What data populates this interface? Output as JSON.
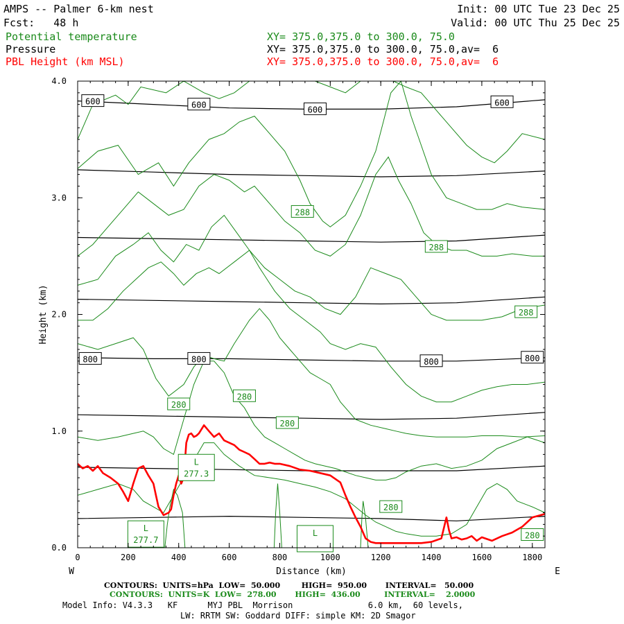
{
  "header": {
    "title": "AMPS -- Palmer 6-km nest",
    "fcst": "Fcst:   48 h",
    "init": "Init: 00 UTC Tue 23 Dec 25",
    "valid": "Valid: 00 UTC Thu 25 Dec 25"
  },
  "fields": [
    {
      "name": "Potential temperature",
      "xy": "XY= 375.0,375.0 to 300.0, 75.0",
      "color": "#1a8a1a"
    },
    {
      "name": "Pressure",
      "xy": "XY= 375.0,375.0 to 300.0, 75.0,av=  6",
      "color": "#000000"
    },
    {
      "name": "PBL Height (km MSL)",
      "xy": "XY= 375.0,375.0 to 300.0, 75.0,av=  6",
      "color": "#ff0000"
    }
  ],
  "chart_data": {
    "type": "line",
    "xlabel": "Distance (km)",
    "ylabel": "Height (km)",
    "xlim": [
      0,
      1850
    ],
    "ylim": [
      0,
      4.0
    ],
    "x_ticks": [
      "0",
      "200",
      "400",
      "600",
      "800",
      "1000",
      "1200",
      "1400",
      "1600",
      "1800"
    ],
    "y_ticks": [
      "0.0",
      "1.0",
      "2.0",
      "3.0",
      "4.0"
    ],
    "west_label": "W",
    "east_label": "E",
    "pressure_contours": [
      {
        "level": 600,
        "label": "600",
        "x": [
          0,
          300,
          600,
          900,
          1200,
          1500,
          1850
        ],
        "y": [
          3.83,
          3.8,
          3.77,
          3.76,
          3.76,
          3.78,
          3.84
        ]
      },
      {
        "level": 650,
        "label": "",
        "x": [
          0,
          300,
          600,
          900,
          1200,
          1500,
          1850
        ],
        "y": [
          3.24,
          3.22,
          3.2,
          3.19,
          3.18,
          3.19,
          3.23
        ]
      },
      {
        "level": 700,
        "label": "",
        "x": [
          0,
          300,
          600,
          900,
          1200,
          1500,
          1850
        ],
        "y": [
          2.66,
          2.65,
          2.64,
          2.63,
          2.62,
          2.63,
          2.68
        ]
      },
      {
        "level": 750,
        "label": "",
        "x": [
          0,
          300,
          600,
          900,
          1200,
          1500,
          1850
        ],
        "y": [
          2.13,
          2.12,
          2.11,
          2.1,
          2.09,
          2.1,
          2.15
        ]
      },
      {
        "level": 800,
        "label": "800",
        "x": [
          0,
          300,
          600,
          900,
          1200,
          1500,
          1850
        ],
        "y": [
          1.63,
          1.62,
          1.62,
          1.61,
          1.6,
          1.6,
          1.63
        ]
      },
      {
        "level": 850,
        "label": "",
        "x": [
          0,
          300,
          600,
          900,
          1200,
          1500,
          1850
        ],
        "y": [
          1.14,
          1.13,
          1.12,
          1.11,
          1.1,
          1.11,
          1.16
        ]
      },
      {
        "level": 900,
        "label": "",
        "x": [
          0,
          300,
          600,
          900,
          1200,
          1500,
          1850
        ],
        "y": [
          0.69,
          0.68,
          0.67,
          0.66,
          0.66,
          0.66,
          0.7
        ]
      },
      {
        "level": 950,
        "label": "",
        "x": [
          0,
          300,
          600,
          900,
          1200,
          1500,
          1850
        ],
        "y": [
          0.25,
          0.26,
          0.27,
          0.26,
          0.25,
          0.23,
          0.27
        ]
      }
    ],
    "pressure_labels": [
      {
        "text": "600",
        "x": 60,
        "y": 3.83
      },
      {
        "text": "600",
        "x": 480,
        "y": 3.8
      },
      {
        "text": "600",
        "x": 940,
        "y": 3.76
      },
      {
        "text": "600",
        "x": 1680,
        "y": 3.82
      },
      {
        "text": "800",
        "x": 50,
        "y": 1.62
      },
      {
        "text": "800",
        "x": 480,
        "y": 1.62
      },
      {
        "text": "800",
        "x": 1400,
        "y": 1.6
      },
      {
        "text": "800",
        "x": 1800,
        "y": 1.63
      }
    ],
    "theta_contours": [
      {
        "label": "",
        "x": [
          0,
          60,
          150,
          200,
          250,
          350,
          420,
          500,
          560,
          620,
          680,
          740,
          800,
          870,
          940,
          1000,
          1060,
          1120,
          1180,
          1250,
          1300,
          1360,
          1420,
          1480,
          1540,
          1600,
          1650,
          1700,
          1760,
          1850
        ],
        "y": [
          3.5,
          3.8,
          3.88,
          3.8,
          3.95,
          3.9,
          4.0,
          3.9,
          3.85,
          3.9,
          4.0,
          4.0,
          4.0,
          4.0,
          4.0,
          3.95,
          3.9,
          4.0,
          4.0,
          4.0,
          3.95,
          3.9,
          3.75,
          3.6,
          3.45,
          3.35,
          3.3,
          3.4,
          3.55,
          3.5
        ]
      },
      {
        "label": "288",
        "x": [
          0,
          80,
          160,
          240,
          320,
          380,
          440,
          520,
          580,
          640,
          700,
          760,
          820,
          880,
          920,
          970,
          1000,
          1060,
          1120,
          1180,
          1240,
          1280,
          1320,
          1360,
          1400,
          1460,
          1520,
          1580,
          1640,
          1700,
          1760,
          1850
        ],
        "y": [
          3.25,
          3.4,
          3.45,
          3.2,
          3.3,
          3.1,
          3.3,
          3.5,
          3.55,
          3.65,
          3.7,
          3.55,
          3.4,
          3.15,
          2.95,
          2.8,
          2.75,
          2.85,
          3.1,
          3.4,
          3.9,
          4.0,
          3.7,
          3.45,
          3.2,
          3.0,
          2.95,
          2.9,
          2.9,
          2.95,
          2.92,
          2.9
        ]
      },
      {
        "label": "288",
        "x": [
          0,
          60,
          120,
          180,
          240,
          300,
          360,
          420,
          480,
          540,
          600,
          660,
          700,
          760,
          820,
          880,
          940,
          1000,
          1060,
          1120,
          1180,
          1230,
          1270,
          1320,
          1370,
          1420,
          1480,
          1540,
          1600,
          1660,
          1720,
          1800,
          1850
        ],
        "y": [
          2.5,
          2.6,
          2.75,
          2.9,
          3.05,
          2.95,
          2.85,
          2.9,
          3.1,
          3.2,
          3.15,
          3.05,
          3.1,
          2.95,
          2.8,
          2.7,
          2.55,
          2.5,
          2.6,
          2.85,
          3.2,
          3.35,
          3.15,
          2.95,
          2.7,
          2.6,
          2.55,
          2.55,
          2.5,
          2.5,
          2.52,
          2.5,
          2.5
        ]
      },
      {
        "label": "288",
        "x": [
          0,
          80,
          150,
          220,
          280,
          330,
          380,
          430,
          480,
          530,
          580,
          630,
          680,
          740,
          800,
          860,
          920,
          980,
          1040,
          1100,
          1160,
          1220,
          1280,
          1340,
          1400,
          1460,
          1520,
          1600,
          1680,
          1760,
          1850
        ],
        "y": [
          2.25,
          2.3,
          2.5,
          2.6,
          2.7,
          2.55,
          2.45,
          2.6,
          2.55,
          2.75,
          2.85,
          2.7,
          2.55,
          2.4,
          2.3,
          2.2,
          2.15,
          2.05,
          2.0,
          2.15,
          2.4,
          2.35,
          2.3,
          2.15,
          2.0,
          1.95,
          1.95,
          1.95,
          1.98,
          2.05,
          2.08
        ]
      },
      {
        "label": "",
        "x": [
          0,
          60,
          120,
          180,
          230,
          280,
          330,
          380,
          420,
          470,
          520,
          560,
          620,
          680,
          720,
          780,
          840,
          900,
          960,
          1000,
          1060,
          1120,
          1180,
          1240,
          1300,
          1360,
          1420,
          1480,
          1540,
          1600,
          1660,
          1720,
          1780,
          1850
        ],
        "y": [
          1.95,
          1.95,
          2.05,
          2.2,
          2.3,
          2.4,
          2.45,
          2.35,
          2.25,
          2.35,
          2.4,
          2.35,
          2.45,
          2.55,
          2.4,
          2.2,
          2.05,
          1.95,
          1.85,
          1.75,
          1.7,
          1.75,
          1.72,
          1.55,
          1.4,
          1.3,
          1.25,
          1.25,
          1.3,
          1.35,
          1.38,
          1.4,
          1.4,
          1.42
        ]
      },
      {
        "label": "280",
        "x": [
          0,
          80,
          150,
          220,
          260,
          310,
          360,
          420,
          460,
          500,
          540,
          580,
          620,
          680,
          720,
          760,
          800,
          840,
          880,
          920,
          960,
          1000,
          1040,
          1100,
          1160,
          1220,
          1260,
          1300,
          1360,
          1420,
          1480,
          1540,
          1600,
          1680,
          1760,
          1850
        ],
        "y": [
          1.75,
          1.7,
          1.75,
          1.8,
          1.7,
          1.45,
          1.3,
          1.4,
          1.55,
          1.65,
          1.62,
          1.6,
          1.75,
          1.95,
          2.05,
          1.95,
          1.8,
          1.7,
          1.6,
          1.5,
          1.45,
          1.4,
          1.25,
          1.1,
          1.05,
          1.02,
          1.0,
          0.98,
          0.96,
          0.95,
          0.95,
          0.95,
          0.96,
          0.96,
          0.95,
          0.96
        ]
      },
      {
        "label": "280",
        "x": [
          0,
          80,
          160,
          220,
          260,
          300,
          340,
          380,
          420,
          460,
          500,
          540,
          580,
          620,
          660,
          700,
          740,
          780,
          820,
          860,
          900,
          940,
          980,
          1020,
          1060,
          1100,
          1140,
          1180,
          1220,
          1260,
          1300,
          1360,
          1420,
          1480,
          1540,
          1600,
          1660,
          1720,
          1780,
          1850
        ],
        "y": [
          0.95,
          0.92,
          0.95,
          0.98,
          1.0,
          0.95,
          0.85,
          0.8,
          1.1,
          1.4,
          1.6,
          1.6,
          1.5,
          1.3,
          1.2,
          1.05,
          0.95,
          0.9,
          0.85,
          0.8,
          0.75,
          0.72,
          0.7,
          0.68,
          0.65,
          0.62,
          0.6,
          0.58,
          0.58,
          0.6,
          0.65,
          0.7,
          0.72,
          0.68,
          0.7,
          0.75,
          0.85,
          0.9,
          0.95,
          0.9
        ]
      },
      {
        "label": "280",
        "x": [
          0,
          80,
          160,
          220,
          260,
          300,
          340,
          380,
          420,
          460,
          500,
          540,
          580,
          640,
          700,
          760,
          820,
          880,
          940,
          1000,
          1060,
          1100,
          1140,
          1180,
          1220,
          1260,
          1300,
          1360,
          1420,
          1480,
          1540,
          1580,
          1620,
          1660,
          1700,
          1740,
          1800,
          1850
        ],
        "y": [
          0.45,
          0.5,
          0.55,
          0.5,
          0.4,
          0.35,
          0.3,
          0.45,
          0.6,
          0.75,
          0.9,
          0.9,
          0.8,
          0.7,
          0.62,
          0.6,
          0.58,
          0.55,
          0.52,
          0.48,
          0.42,
          0.35,
          0.28,
          0.22,
          0.18,
          0.14,
          0.12,
          0.1,
          0.1,
          0.12,
          0.2,
          0.35,
          0.5,
          0.55,
          0.5,
          0.4,
          0.35,
          0.3
        ]
      },
      {
        "label": "",
        "x": [
          345,
          355,
          365,
          380,
          395,
          415,
          425
        ],
        "y": [
          0.0,
          0.2,
          0.35,
          0.5,
          0.45,
          0.3,
          0.0
        ]
      },
      {
        "label": "",
        "x": [
          778,
          784,
          792,
          800,
          808
        ],
        "y": [
          0.0,
          0.3,
          0.55,
          0.3,
          0.0
        ]
      },
      {
        "label": "",
        "x": [
          1120,
          1125,
          1130,
          1140,
          1150
        ],
        "y": [
          0.0,
          0.25,
          0.4,
          0.25,
          0.0
        ]
      }
    ],
    "theta_labels": [
      {
        "text": "288",
        "x": 890,
        "y": 2.88
      },
      {
        "text": "288",
        "x": 1420,
        "y": 2.58
      },
      {
        "text": "288",
        "x": 1775,
        "y": 2.02
      },
      {
        "text": "280",
        "x": 400,
        "y": 1.23
      },
      {
        "text": "280",
        "x": 660,
        "y": 1.3
      },
      {
        "text": "280",
        "x": 830,
        "y": 1.07
      },
      {
        "text": "280",
        "x": 1240,
        "y": 0.35
      },
      {
        "text": "280",
        "x": 1800,
        "y": 0.11
      }
    ],
    "theta_minima": [
      {
        "mark": "L",
        "value": "277.3",
        "x": 470,
        "y": 0.67
      },
      {
        "mark": "L",
        "value": "277.7",
        "x": 270,
        "y": 0.1
      },
      {
        "mark": "L",
        "value": "",
        "x": 940,
        "y": 0.06
      }
    ],
    "pbl_height": {
      "x": [
        0,
        20,
        40,
        60,
        80,
        100,
        130,
        160,
        180,
        200,
        220,
        240,
        260,
        280,
        300,
        310,
        320,
        340,
        360,
        370,
        380,
        390,
        400,
        410,
        420,
        430,
        440,
        450,
        460,
        470,
        480,
        500,
        520,
        540,
        560,
        580,
        600,
        620,
        640,
        660,
        680,
        700,
        720,
        740,
        760,
        780,
        800,
        840,
        880,
        920,
        960,
        1000,
        1040,
        1060,
        1080,
        1100,
        1120,
        1140,
        1160,
        1180,
        1200,
        1240,
        1280,
        1320,
        1360,
        1400,
        1440,
        1460,
        1470,
        1480,
        1500,
        1520,
        1540,
        1560,
        1580,
        1600,
        1640,
        1680,
        1720,
        1760,
        1800,
        1850
      ],
      "y": [
        0.72,
        0.68,
        0.7,
        0.66,
        0.7,
        0.64,
        0.6,
        0.55,
        0.48,
        0.4,
        0.55,
        0.68,
        0.7,
        0.62,
        0.55,
        0.45,
        0.35,
        0.28,
        0.3,
        0.33,
        0.45,
        0.55,
        0.62,
        0.55,
        0.6,
        0.9,
        0.97,
        0.98,
        0.95,
        0.96,
        0.98,
        1.05,
        1.0,
        0.95,
        0.98,
        0.92,
        0.9,
        0.88,
        0.84,
        0.82,
        0.8,
        0.76,
        0.72,
        0.72,
        0.73,
        0.72,
        0.72,
        0.7,
        0.67,
        0.66,
        0.64,
        0.62,
        0.56,
        0.45,
        0.35,
        0.26,
        0.18,
        0.08,
        0.05,
        0.04,
        0.04,
        0.04,
        0.04,
        0.04,
        0.04,
        0.05,
        0.08,
        0.26,
        0.15,
        0.08,
        0.09,
        0.07,
        0.08,
        0.1,
        0.06,
        0.09,
        0.06,
        0.1,
        0.13,
        0.18,
        0.26,
        0.29
      ]
    }
  },
  "footer": {
    "line1": "CONTOURS:  UNITS=hPa  LOW=  50.000        HIGH=  950.00       INTERVAL=   50.000",
    "line2": "CONTOURS:  UNITS=K  LOW=  278.00       HIGH=  436.00         INTERVAL=    2.0000",
    "line3": "Model Info: V4.3.3   KF      MYJ PBL  Morrison               6.0 km,  60 levels,",
    "line4": "LW: RRTM SW: Goddard DIFF: simple KM: 2D Smagor"
  }
}
